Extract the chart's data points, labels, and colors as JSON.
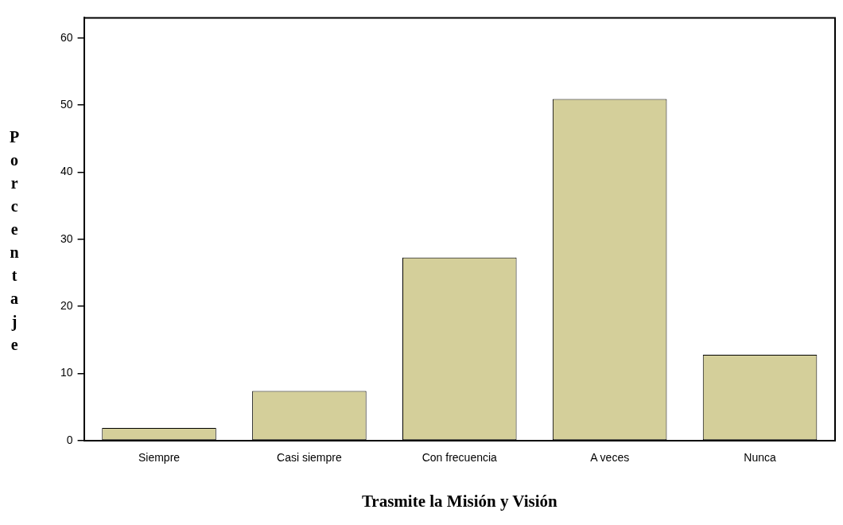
{
  "chart_data": {
    "type": "bar",
    "xlabel": "Trasmite la Misión y Visión",
    "ylabel": "Porcentaje",
    "categories": [
      "Siempre",
      "Casi siempre",
      "Con frecuencia",
      "A veces",
      "Nunca"
    ],
    "values": [
      1.9,
      7.4,
      27.3,
      50.9,
      12.8
    ],
    "color": "#d4cf9a",
    "ylim": [
      0,
      63
    ],
    "yticks": [
      0,
      10,
      20,
      30,
      40,
      50,
      60
    ],
    "grid": false,
    "legend": false
  }
}
